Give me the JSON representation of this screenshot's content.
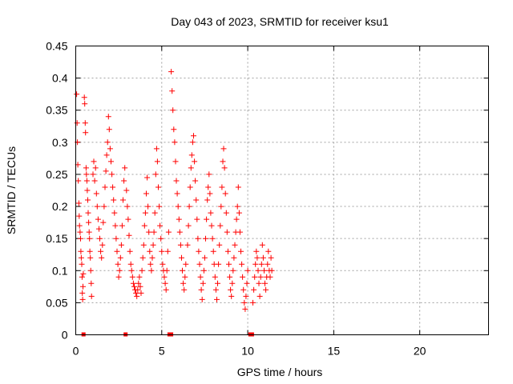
{
  "chart_data": {
    "type": "scatter",
    "title": "Day 043 of 2023, SRMTID for receiver ksu1",
    "xlabel": "GPS time / hours",
    "ylabel": "SRMTID / TECUs",
    "xlim": [
      0,
      24
    ],
    "ylim": [
      0,
      0.45
    ],
    "xticks": [
      0,
      5,
      10,
      15,
      20
    ],
    "xtick_labels": [
      "0",
      "5",
      "10",
      "15",
      "20"
    ],
    "yticks": [
      0,
      0.05,
      0.1,
      0.15,
      0.2,
      0.25,
      0.3,
      0.35,
      0.4,
      0.45
    ],
    "ytick_labels": [
      "0",
      "0.05",
      "0.1",
      "0.15",
      "0.2",
      "0.25",
      "0.3",
      "0.35",
      "0.4",
      "0.45"
    ],
    "grid": true,
    "marker": "+",
    "color": "#ff0000",
    "zero_markers_x": [
      0.45,
      2.9,
      5.45,
      5.55,
      10.15,
      10.25
    ],
    "series": [
      {
        "name": "SRMTID",
        "points": [
          [
            0.05,
            0.375
          ],
          [
            0.08,
            0.33
          ],
          [
            0.1,
            0.3
          ],
          [
            0.12,
            0.265
          ],
          [
            0.15,
            0.24
          ],
          [
            0.18,
            0.205
          ],
          [
            0.2,
            0.185
          ],
          [
            0.22,
            0.17
          ],
          [
            0.25,
            0.16
          ],
          [
            0.28,
            0.15
          ],
          [
            0.3,
            0.13
          ],
          [
            0.32,
            0.12
          ],
          [
            0.35,
            0.11
          ],
          [
            0.37,
            0.09
          ],
          [
            0.38,
            0.065
          ],
          [
            0.4,
            0.055
          ],
          [
            0.42,
            0.075
          ],
          [
            0.44,
            0.095
          ],
          [
            0.5,
            0.37
          ],
          [
            0.52,
            0.36
          ],
          [
            0.55,
            0.33
          ],
          [
            0.57,
            0.315
          ],
          [
            0.6,
            0.26
          ],
          [
            0.62,
            0.25
          ],
          [
            0.65,
            0.24
          ],
          [
            0.67,
            0.225
          ],
          [
            0.7,
            0.21
          ],
          [
            0.72,
            0.19
          ],
          [
            0.75,
            0.175
          ],
          [
            0.78,
            0.16
          ],
          [
            0.8,
            0.15
          ],
          [
            0.82,
            0.13
          ],
          [
            0.85,
            0.12
          ],
          [
            0.87,
            0.1
          ],
          [
            0.9,
            0.08
          ],
          [
            0.92,
            0.06
          ],
          [
            1.0,
            0.25
          ],
          [
            1.05,
            0.27
          ],
          [
            1.1,
            0.24
          ],
          [
            1.15,
            0.26
          ],
          [
            1.2,
            0.22
          ],
          [
            1.25,
            0.2
          ],
          [
            1.3,
            0.18
          ],
          [
            1.35,
            0.165
          ],
          [
            1.4,
            0.15
          ],
          [
            1.45,
            0.13
          ],
          [
            1.5,
            0.12
          ],
          [
            1.55,
            0.14
          ],
          [
            1.6,
            0.175
          ],
          [
            1.65,
            0.2
          ],
          [
            1.7,
            0.23
          ],
          [
            1.75,
            0.255
          ],
          [
            1.8,
            0.28
          ],
          [
            1.85,
            0.3
          ],
          [
            1.9,
            0.34
          ],
          [
            1.95,
            0.32
          ],
          [
            2.0,
            0.29
          ],
          [
            2.05,
            0.27
          ],
          [
            2.1,
            0.25
          ],
          [
            2.15,
            0.23
          ],
          [
            2.2,
            0.21
          ],
          [
            2.25,
            0.19
          ],
          [
            2.3,
            0.17
          ],
          [
            2.35,
            0.15
          ],
          [
            2.4,
            0.13
          ],
          [
            2.45,
            0.11
          ],
          [
            2.5,
            0.09
          ],
          [
            2.55,
            0.1
          ],
          [
            2.6,
            0.12
          ],
          [
            2.65,
            0.14
          ],
          [
            2.7,
            0.17
          ],
          [
            2.75,
            0.21
          ],
          [
            2.8,
            0.24
          ],
          [
            2.85,
            0.26
          ],
          [
            2.95,
            0.225
          ],
          [
            3.0,
            0.2
          ],
          [
            3.05,
            0.18
          ],
          [
            3.1,
            0.155
          ],
          [
            3.15,
            0.13
          ],
          [
            3.2,
            0.11
          ],
          [
            3.25,
            0.1
          ],
          [
            3.3,
            0.09
          ],
          [
            3.35,
            0.08
          ],
          [
            3.4,
            0.075
          ],
          [
            3.45,
            0.07
          ],
          [
            3.5,
            0.065
          ],
          [
            3.55,
            0.06
          ],
          [
            3.6,
            0.07
          ],
          [
            3.65,
            0.08
          ],
          [
            3.7,
            0.09
          ],
          [
            3.75,
            0.075
          ],
          [
            3.8,
            0.065
          ],
          [
            3.85,
            0.1
          ],
          [
            3.9,
            0.12
          ],
          [
            3.95,
            0.14
          ],
          [
            4.0,
            0.17
          ],
          [
            4.05,
            0.19
          ],
          [
            4.1,
            0.22
          ],
          [
            4.15,
            0.245
          ],
          [
            4.2,
            0.2
          ],
          [
            4.25,
            0.16
          ],
          [
            4.3,
            0.13
          ],
          [
            4.35,
            0.11
          ],
          [
            4.4,
            0.1
          ],
          [
            4.45,
            0.12
          ],
          [
            4.5,
            0.14
          ],
          [
            4.55,
            0.16
          ],
          [
            4.6,
            0.19
          ],
          [
            4.65,
            0.25
          ],
          [
            4.7,
            0.29
          ],
          [
            4.75,
            0.27
          ],
          [
            4.8,
            0.23
          ],
          [
            4.85,
            0.2
          ],
          [
            4.9,
            0.17
          ],
          [
            4.95,
            0.15
          ],
          [
            5.0,
            0.13
          ],
          [
            5.05,
            0.11
          ],
          [
            5.1,
            0.1
          ],
          [
            5.15,
            0.09
          ],
          [
            5.2,
            0.08
          ],
          [
            5.25,
            0.07
          ],
          [
            5.3,
            0.1
          ],
          [
            5.35,
            0.13
          ],
          [
            5.4,
            0.16
          ],
          [
            5.55,
            0.41
          ],
          [
            5.6,
            0.38
          ],
          [
            5.65,
            0.35
          ],
          [
            5.7,
            0.32
          ],
          [
            5.75,
            0.3
          ],
          [
            5.8,
            0.27
          ],
          [
            5.85,
            0.24
          ],
          [
            5.9,
            0.22
          ],
          [
            5.95,
            0.2
          ],
          [
            6.0,
            0.18
          ],
          [
            6.05,
            0.16
          ],
          [
            6.1,
            0.14
          ],
          [
            6.15,
            0.12
          ],
          [
            6.2,
            0.1
          ],
          [
            6.25,
            0.08
          ],
          [
            6.3,
            0.07
          ],
          [
            6.35,
            0.09
          ],
          [
            6.4,
            0.11
          ],
          [
            6.5,
            0.14
          ],
          [
            6.55,
            0.17
          ],
          [
            6.6,
            0.2
          ],
          [
            6.65,
            0.23
          ],
          [
            6.7,
            0.26
          ],
          [
            6.75,
            0.28
          ],
          [
            6.8,
            0.3
          ],
          [
            6.85,
            0.31
          ],
          [
            6.9,
            0.27
          ],
          [
            6.95,
            0.24
          ],
          [
            7.0,
            0.21
          ],
          [
            7.05,
            0.18
          ],
          [
            7.1,
            0.15
          ],
          [
            7.15,
            0.13
          ],
          [
            7.2,
            0.11
          ],
          [
            7.25,
            0.09
          ],
          [
            7.3,
            0.07
          ],
          [
            7.35,
            0.055
          ],
          [
            7.4,
            0.08
          ],
          [
            7.45,
            0.1
          ],
          [
            7.5,
            0.12
          ],
          [
            7.55,
            0.15
          ],
          [
            7.6,
            0.18
          ],
          [
            7.65,
            0.21
          ],
          [
            7.7,
            0.23
          ],
          [
            7.75,
            0.25
          ],
          [
            7.8,
            0.22
          ],
          [
            7.85,
            0.19
          ],
          [
            7.9,
            0.17
          ],
          [
            7.95,
            0.15
          ],
          [
            8.0,
            0.13
          ],
          [
            8.05,
            0.11
          ],
          [
            8.1,
            0.09
          ],
          [
            8.15,
            0.07
          ],
          [
            8.2,
            0.055
          ],
          [
            8.25,
            0.08
          ],
          [
            8.3,
            0.11
          ],
          [
            8.35,
            0.14
          ],
          [
            8.4,
            0.17
          ],
          [
            8.45,
            0.2
          ],
          [
            8.5,
            0.23
          ],
          [
            8.55,
            0.27
          ],
          [
            8.6,
            0.29
          ],
          [
            8.65,
            0.26
          ],
          [
            8.7,
            0.22
          ],
          [
            8.75,
            0.19
          ],
          [
            8.8,
            0.16
          ],
          [
            8.85,
            0.13
          ],
          [
            8.9,
            0.11
          ],
          [
            8.95,
            0.09
          ],
          [
            9.0,
            0.07
          ],
          [
            9.05,
            0.06
          ],
          [
            9.1,
            0.08
          ],
          [
            9.15,
            0.1
          ],
          [
            9.2,
            0.12
          ],
          [
            9.25,
            0.14
          ],
          [
            9.3,
            0.16
          ],
          [
            9.35,
            0.18
          ],
          [
            9.4,
            0.2
          ],
          [
            9.45,
            0.23
          ],
          [
            9.5,
            0.19
          ],
          [
            9.55,
            0.16
          ],
          [
            9.6,
            0.13
          ],
          [
            9.65,
            0.11
          ],
          [
            9.7,
            0.09
          ],
          [
            9.75,
            0.07
          ],
          [
            9.8,
            0.05
          ],
          [
            9.85,
            0.04
          ],
          [
            9.9,
            0.06
          ],
          [
            9.95,
            0.08
          ],
          [
            10.0,
            0.1
          ],
          [
            10.3,
            0.05
          ],
          [
            10.35,
            0.07
          ],
          [
            10.4,
            0.09
          ],
          [
            10.45,
            0.11
          ],
          [
            10.5,
            0.13
          ],
          [
            10.55,
            0.12
          ],
          [
            10.6,
            0.1
          ],
          [
            10.65,
            0.08
          ],
          [
            10.7,
            0.06
          ],
          [
            10.75,
            0.09
          ],
          [
            10.8,
            0.11
          ],
          [
            10.85,
            0.14
          ],
          [
            10.9,
            0.12
          ],
          [
            10.95,
            0.1
          ],
          [
            11.0,
            0.08
          ],
          [
            11.05,
            0.07
          ],
          [
            11.1,
            0.09
          ],
          [
            11.15,
            0.11
          ],
          [
            11.2,
            0.13
          ],
          [
            11.25,
            0.1
          ],
          [
            11.3,
            0.09
          ],
          [
            11.35,
            0.12
          ],
          [
            11.4,
            0.1
          ]
        ]
      }
    ]
  }
}
